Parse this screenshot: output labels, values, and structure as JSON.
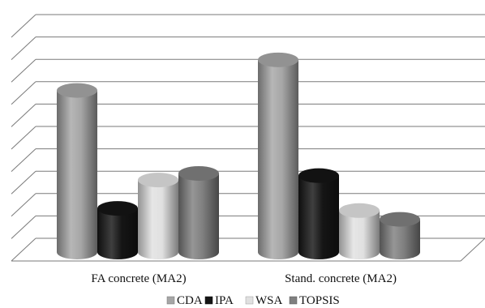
{
  "chart_data": {
    "type": "bar",
    "subtype": "3d-cylinder",
    "title": "",
    "xlabel": "",
    "ylabel": "",
    "categories": [
      "FA concrete (MA2)",
      "Stand. concrete (MA2)"
    ],
    "ylim": [
      0,
      10
    ],
    "grid": true,
    "show_y_tick_labels": false,
    "legend_position": "bottom",
    "series": [
      {
        "name": "CDA",
        "color": "#a6a6a6",
        "values": [
          7.4,
          8.8
        ]
      },
      {
        "name": "IPA",
        "color": "#151515",
        "values": [
          2.0,
          3.5
        ]
      },
      {
        "name": "WSA",
        "color": "#e0e0e0",
        "values": [
          3.3,
          1.9
        ]
      },
      {
        "name": "TOPSIS",
        "color": "#7f7f7f",
        "values": [
          3.6,
          1.5
        ]
      }
    ]
  }
}
